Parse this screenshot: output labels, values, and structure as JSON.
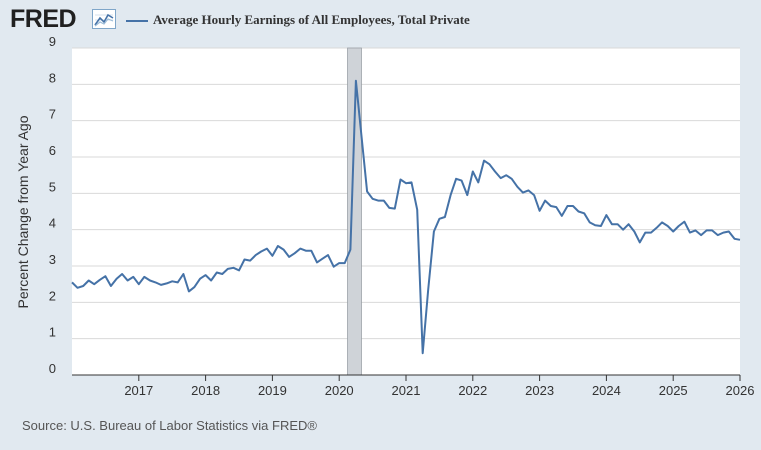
{
  "header": {
    "logo_text": "FRED",
    "logo_icon": "line-chart-icon",
    "legend_label": "Average Hourly Earnings of All Employees, Total Private"
  },
  "footer": {
    "source": "Source: U.S. Bureau of Labor Statistics via FRED®"
  },
  "colors": {
    "series": "#4572a7",
    "recession": "#cfd3d8",
    "background": "#e1e9f0"
  },
  "chart_data": {
    "type": "line",
    "title": "",
    "xlabel": "",
    "ylabel": "Percent Change from Year Ago",
    "ylim": [
      0,
      9
    ],
    "xlim": [
      2016.0,
      2026.0
    ],
    "y_ticks": [
      "0",
      "1",
      "2",
      "3",
      "4",
      "5",
      "6",
      "7",
      "8",
      "9"
    ],
    "x_ticks": [
      "2017",
      "2018",
      "2019",
      "2020",
      "2021",
      "2022",
      "2023",
      "2024",
      "2025",
      "2026"
    ],
    "grid": true,
    "legend": "top-left",
    "recession": [
      2020.125,
      2020.333
    ],
    "series": [
      {
        "name": "Average Hourly Earnings of All Employees, Total Private",
        "x": [
          2016.0,
          2016.083,
          2016.167,
          2016.25,
          2016.333,
          2016.417,
          2016.5,
          2016.583,
          2016.667,
          2016.75,
          2016.833,
          2016.917,
          2017.0,
          2017.083,
          2017.167,
          2017.25,
          2017.333,
          2017.417,
          2017.5,
          2017.583,
          2017.667,
          2017.75,
          2017.833,
          2017.917,
          2018.0,
          2018.083,
          2018.167,
          2018.25,
          2018.333,
          2018.417,
          2018.5,
          2018.583,
          2018.667,
          2018.75,
          2018.833,
          2018.917,
          2019.0,
          2019.083,
          2019.167,
          2019.25,
          2019.333,
          2019.417,
          2019.5,
          2019.583,
          2019.667,
          2019.75,
          2019.833,
          2019.917,
          2020.0,
          2020.083,
          2020.167,
          2020.25,
          2020.333,
          2020.417,
          2020.5,
          2020.583,
          2020.667,
          2020.75,
          2020.833,
          2020.917,
          2021.0,
          2021.083,
          2021.167,
          2021.25,
          2021.333,
          2021.417,
          2021.5,
          2021.583,
          2021.667,
          2021.75,
          2021.833,
          2021.917,
          2022.0,
          2022.083,
          2022.167,
          2022.25,
          2022.333,
          2022.417,
          2022.5,
          2022.583,
          2022.667,
          2022.75,
          2022.833,
          2022.917,
          2023.0,
          2023.083,
          2023.167,
          2023.25,
          2023.333,
          2023.417,
          2023.5,
          2023.583,
          2023.667,
          2023.75,
          2023.833,
          2023.917,
          2024.0,
          2024.083,
          2024.167,
          2024.25,
          2024.333,
          2024.417,
          2024.5,
          2024.583,
          2024.667,
          2024.75,
          2024.833,
          2024.917,
          2025.0,
          2025.083,
          2025.167,
          2025.25,
          2025.333,
          2025.417,
          2025.5,
          2025.583,
          2025.667,
          2025.75,
          2025.833,
          2025.917,
          2026.0
        ],
        "y": [
          2.55,
          2.4,
          2.45,
          2.6,
          2.5,
          2.62,
          2.72,
          2.45,
          2.65,
          2.78,
          2.6,
          2.7,
          2.5,
          2.7,
          2.6,
          2.55,
          2.48,
          2.52,
          2.58,
          2.55,
          2.78,
          2.3,
          2.42,
          2.65,
          2.75,
          2.6,
          2.82,
          2.78,
          2.92,
          2.95,
          2.88,
          3.18,
          3.15,
          3.3,
          3.4,
          3.48,
          3.28,
          3.55,
          3.45,
          3.25,
          3.35,
          3.48,
          3.42,
          3.42,
          3.1,
          3.2,
          3.3,
          2.98,
          3.08,
          3.08,
          3.45,
          8.1,
          6.6,
          5.05,
          4.85,
          4.8,
          4.8,
          4.6,
          4.58,
          5.38,
          5.28,
          5.3,
          4.55,
          0.6,
          2.35,
          3.95,
          4.3,
          4.35,
          4.95,
          5.4,
          5.35,
          4.95,
          5.6,
          5.3,
          5.9,
          5.8,
          5.6,
          5.42,
          5.5,
          5.4,
          5.18,
          5.02,
          5.08,
          4.95,
          4.52,
          4.8,
          4.65,
          4.62,
          4.38,
          4.65,
          4.65,
          4.5,
          4.45,
          4.2,
          4.12,
          4.1,
          4.4,
          4.15,
          4.15,
          4.0,
          4.15,
          3.95,
          3.65,
          3.92,
          3.92,
          4.05,
          4.2,
          4.1,
          3.95,
          4.1,
          4.22,
          3.92,
          3.98,
          3.85,
          3.98,
          3.98,
          3.85,
          3.92,
          3.95,
          3.75,
          3.72
        ]
      }
    ]
  }
}
